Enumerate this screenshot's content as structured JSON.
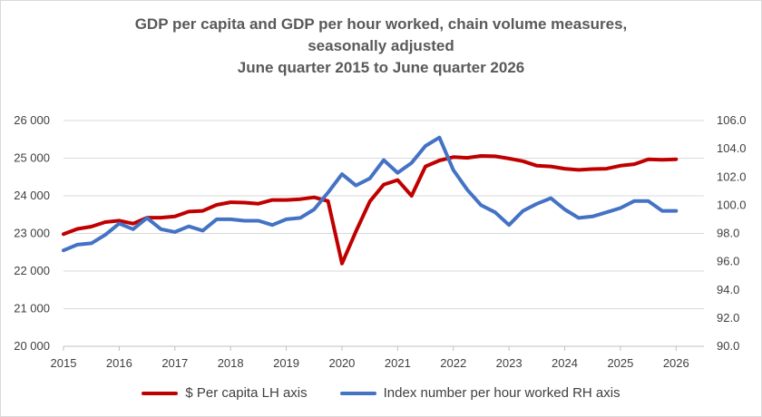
{
  "title": {
    "line1": "GDP per capita and GDP per hour worked, chain volume measures,",
    "line2": "seasonally adjusted",
    "line3": "June quarter 2015 to June quarter 2026"
  },
  "chart_data": {
    "type": "line",
    "title": "GDP per capita and GDP per hour worked, chain volume measures, seasonally adjusted June quarter 2015 to June quarter 2026",
    "xlabel": "",
    "x": [
      2015.0,
      2015.25,
      2015.5,
      2015.75,
      2016.0,
      2016.25,
      2016.5,
      2016.75,
      2017.0,
      2017.25,
      2017.5,
      2017.75,
      2018.0,
      2018.25,
      2018.5,
      2018.75,
      2019.0,
      2019.25,
      2019.5,
      2019.75,
      2020.0,
      2020.25,
      2020.5,
      2020.75,
      2021.0,
      2021.25,
      2021.5,
      2021.75,
      2022.0,
      2022.25,
      2022.5,
      2022.75,
      2023.0,
      2023.25,
      2023.5,
      2023.75,
      2024.0,
      2024.25,
      2024.5,
      2024.75,
      2025.0,
      2025.25,
      2025.5,
      2025.75,
      2026.0
    ],
    "xticks": [
      "2015",
      "2016",
      "2017",
      "2018",
      "2019",
      "2020",
      "2021",
      "2022",
      "2023",
      "2024",
      "2025",
      "2026"
    ],
    "xlim": [
      2015,
      2026.5
    ],
    "y_left": {
      "ylim": [
        20000,
        26000
      ],
      "ticks": [
        "20 000",
        "21 000",
        "22 000",
        "23 000",
        "24 000",
        "25 000",
        "26 000"
      ]
    },
    "y_right": {
      "ylim": [
        90,
        106
      ],
      "ticks": [
        "90.0",
        "92.0",
        "94.0",
        "96.0",
        "98.0",
        "100.0",
        "102.0",
        "104.0",
        "106.0"
      ]
    },
    "series": [
      {
        "name": "$ Per capita LH axis",
        "axis": "left",
        "color": "#c00000",
        "values": [
          22980,
          23120,
          23180,
          23300,
          23340,
          23260,
          23420,
          23420,
          23450,
          23580,
          23600,
          23760,
          23830,
          23820,
          23790,
          23890,
          23890,
          23910,
          23960,
          23860,
          22200,
          23050,
          23850,
          24300,
          24420,
          24000,
          24780,
          24940,
          25030,
          25010,
          25060,
          25050,
          24990,
          24920,
          24800,
          24780,
          24720,
          24690,
          24710,
          24720,
          24800,
          24840,
          24970,
          24960,
          24970
        ]
      },
      {
        "name": "Index number per hour worked RH axis",
        "axis": "right",
        "color": "#4472c4",
        "values": [
          96.8,
          97.2,
          97.3,
          97.9,
          98.7,
          98.3,
          99.1,
          98.3,
          98.1,
          98.5,
          98.2,
          99.0,
          99.0,
          98.9,
          98.9,
          98.6,
          99.0,
          99.1,
          99.7,
          100.9,
          102.2,
          101.4,
          101.9,
          103.2,
          102.3,
          103.0,
          104.2,
          104.8,
          102.5,
          101.1,
          100.0,
          99.5,
          98.6,
          99.6,
          100.1,
          100.5,
          99.7,
          99.1,
          99.2,
          99.5,
          99.8,
          100.3,
          100.3,
          99.6,
          99.6
        ]
      }
    ],
    "grid": true,
    "legend": "bottom"
  }
}
